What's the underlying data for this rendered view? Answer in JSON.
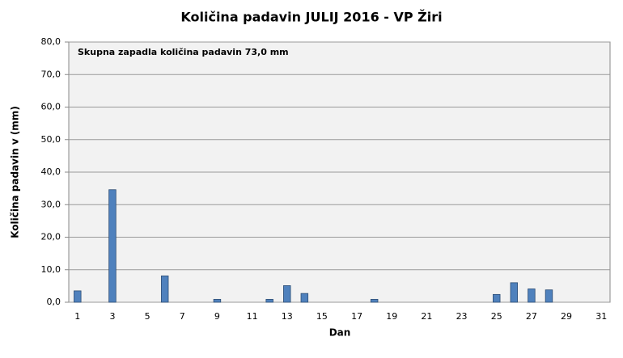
{
  "chart_data": {
    "type": "bar",
    "title": "Količina padavin JULIJ 2016 - VP Žiri",
    "annotation": "Skupna zapadla količina padavin 73,0 mm",
    "x_label": "Dan",
    "y_label": "Količina padavin v  (mm)",
    "categories": [
      "1",
      null,
      "3",
      null,
      "5",
      null,
      "7",
      null,
      "9",
      null,
      "11",
      null,
      "13",
      null,
      "15",
      null,
      "17",
      null,
      "19",
      null,
      "21",
      null,
      "23",
      null,
      "25",
      null,
      "27",
      null,
      "29",
      null,
      "31"
    ],
    "values": [
      3.5,
      0,
      34.6,
      0,
      0,
      8.1,
      0,
      0,
      0.9,
      0,
      0,
      0.9,
      5.1,
      2.7,
      0,
      0,
      0,
      0.9,
      0,
      0,
      0,
      0,
      0,
      0,
      2.4,
      6.0,
      4.1,
      3.8,
      0,
      0,
      0
    ],
    "color": "#4f81bd",
    "ylim": [
      0,
      80
    ],
    "yticks": [
      {
        "value": 0,
        "label": "0,0"
      },
      {
        "value": 10,
        "label": "10,0"
      },
      {
        "value": 20,
        "label": "20,0"
      },
      {
        "value": 30,
        "label": "30,0"
      },
      {
        "value": 40,
        "label": "40,0"
      },
      {
        "value": 50,
        "label": "50,0"
      },
      {
        "value": 60,
        "label": "60,0"
      },
      {
        "value": 70,
        "label": "70,0"
      },
      {
        "value": 80,
        "label": "80,0"
      }
    ],
    "grid": true
  }
}
